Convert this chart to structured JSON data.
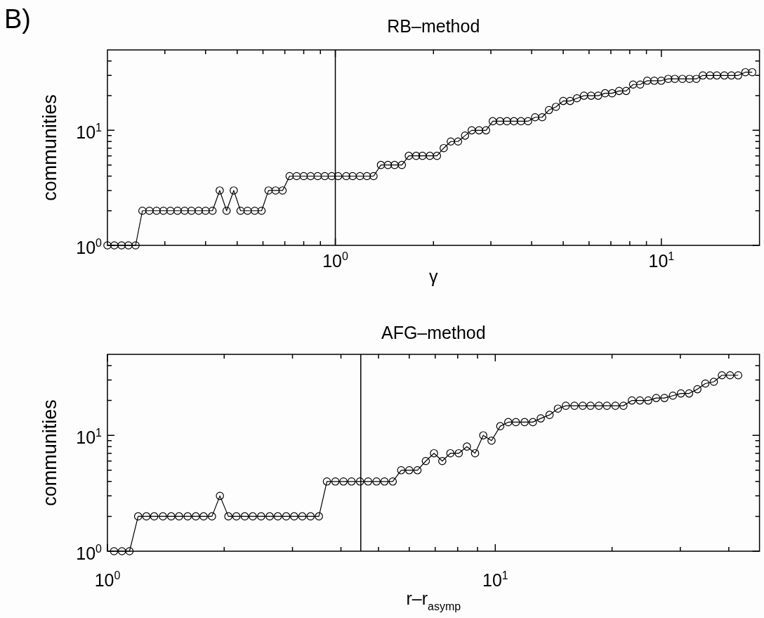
{
  "chart_data": [
    {
      "type": "line",
      "title": "RB–method",
      "xlabel": "γ",
      "ylabel": "communities",
      "annotations": [
        "B)"
      ],
      "log": "xy",
      "marker": "circle",
      "color": "#000000",
      "xlim": [
        0.2,
        20
      ],
      "ylim": [
        1,
        50
      ],
      "xticks": [
        {
          "value": 0.3,
          "label": null
        },
        {
          "value": 0.4,
          "label": null
        },
        {
          "value": 0.5,
          "label": null
        },
        {
          "value": 0.6,
          "label": null
        },
        {
          "value": 0.7,
          "label": null
        },
        {
          "value": 0.8,
          "label": null
        },
        {
          "value": 0.9,
          "label": null
        },
        {
          "value": 1,
          "label": "10$^{0}$"
        },
        {
          "value": 2,
          "label": null
        },
        {
          "value": 3,
          "label": null
        },
        {
          "value": 4,
          "label": null
        },
        {
          "value": 5,
          "label": null
        },
        {
          "value": 6,
          "label": null
        },
        {
          "value": 7,
          "label": null
        },
        {
          "value": 8,
          "label": null
        },
        {
          "value": 9,
          "label": null
        },
        {
          "value": 10,
          "label": "10$^{1}$"
        }
      ],
      "yticks": [
        {
          "value": 1,
          "label": "10$^{0}$"
        },
        {
          "value": 2,
          "label": null
        },
        {
          "value": 3,
          "label": null
        },
        {
          "value": 4,
          "label": null
        },
        {
          "value": 5,
          "label": null
        },
        {
          "value": 6,
          "label": null
        },
        {
          "value": 7,
          "label": null
        },
        {
          "value": 8,
          "label": null
        },
        {
          "value": 9,
          "label": null
        },
        {
          "value": 10,
          "label": "10$^{1}$"
        },
        {
          "value": 20,
          "label": null
        },
        {
          "value": 30,
          "label": null
        },
        {
          "value": 40,
          "label": null
        }
      ],
      "ref_lines": [
        {
          "axis": "x",
          "value": 1,
          "color": "#000000"
        }
      ],
      "x": [
        0.2,
        0.21,
        0.221,
        0.232,
        0.244,
        0.256,
        0.269,
        0.283,
        0.297,
        0.312,
        0.328,
        0.345,
        0.362,
        0.381,
        0.4,
        0.42,
        0.442,
        0.464,
        0.488,
        0.512,
        0.538,
        0.566,
        0.594,
        0.624,
        0.656,
        0.689,
        0.724,
        0.761,
        0.8,
        0.84,
        0.883,
        0.928,
        0.975,
        1.02,
        1.08,
        1.13,
        1.19,
        1.25,
        1.31,
        1.38,
        1.45,
        1.52,
        1.6,
        1.68,
        1.77,
        1.85,
        1.95,
        2.05,
        2.15,
        2.26,
        2.38,
        2.5,
        2.62,
        2.76,
        2.9,
        3.04,
        3.2,
        3.36,
        3.53,
        3.71,
        3.9,
        4.1,
        4.31,
        4.52,
        4.75,
        5,
        5.25,
        5.51,
        5.79,
        6.09,
        6.4,
        6.72,
        7.06,
        7.42,
        7.8,
        8.19,
        8.61,
        9.05,
        9.51,
        9.99,
        10.5,
        11,
        11.6,
        12.2,
        12.8,
        13.4,
        14.1,
        14.8,
        15.6,
        16.4,
        17.2,
        18.1,
        19
      ],
      "values": [
        1,
        1,
        1,
        1,
        1,
        2,
        2,
        2,
        2,
        2,
        2,
        2,
        2,
        2,
        2,
        2,
        3,
        2,
        3,
        2,
        2,
        2,
        2,
        3,
        3,
        3,
        4,
        4,
        4,
        4,
        4,
        4,
        4,
        4,
        4,
        4,
        4,
        4,
        4,
        5,
        5,
        5,
        5,
        6,
        6,
        6,
        6,
        6,
        7,
        8,
        8,
        9,
        10,
        10,
        10,
        12,
        12,
        12,
        12,
        12,
        12,
        13,
        13,
        15,
        16,
        18,
        18,
        19,
        20,
        20,
        20,
        21,
        21,
        22,
        22,
        25,
        25,
        27,
        27,
        27,
        28,
        28,
        28,
        28,
        28,
        30,
        30,
        30,
        30,
        30,
        30,
        32,
        32
      ]
    },
    {
      "type": "line",
      "title": "AFG–method",
      "xlabel": "r–r$_{asymp}$",
      "ylabel": "communities",
      "log": "xy",
      "marker": "circle",
      "color": "#000000",
      "xlim": [
        1,
        48
      ],
      "ylim": [
        1,
        50
      ],
      "xticks": [
        {
          "value": 1,
          "label": "10$^{0}$"
        },
        {
          "value": 2,
          "label": null
        },
        {
          "value": 3,
          "label": null
        },
        {
          "value": 4,
          "label": null
        },
        {
          "value": 5,
          "label": null
        },
        {
          "value": 6,
          "label": null
        },
        {
          "value": 7,
          "label": null
        },
        {
          "value": 8,
          "label": null
        },
        {
          "value": 9,
          "label": null
        },
        {
          "value": 10,
          "label": "10$^{1}$"
        },
        {
          "value": 20,
          "label": null
        },
        {
          "value": 30,
          "label": null
        },
        {
          "value": 40,
          "label": null
        }
      ],
      "yticks": [
        {
          "value": 1,
          "label": "10$^{0}$"
        },
        {
          "value": 2,
          "label": null
        },
        {
          "value": 3,
          "label": null
        },
        {
          "value": 4,
          "label": null
        },
        {
          "value": 5,
          "label": null
        },
        {
          "value": 6,
          "label": null
        },
        {
          "value": 7,
          "label": null
        },
        {
          "value": 8,
          "label": null
        },
        {
          "value": 9,
          "label": null
        },
        {
          "value": 10,
          "label": "10$^{1}$"
        },
        {
          "value": 20,
          "label": null
        },
        {
          "value": 30,
          "label": null
        },
        {
          "value": 40,
          "label": null
        }
      ],
      "ref_lines": [
        {
          "axis": "x",
          "value": 4.5,
          "color": "#000000"
        }
      ],
      "x": [
        1.04,
        1.09,
        1.14,
        1.2,
        1.26,
        1.32,
        1.39,
        1.46,
        1.53,
        1.61,
        1.69,
        1.77,
        1.86,
        1.95,
        2.05,
        2.15,
        2.26,
        2.37,
        2.49,
        2.62,
        2.75,
        2.89,
        3.03,
        3.18,
        3.34,
        3.51,
        3.68,
        3.87,
        4.06,
        4.26,
        4.48,
        4.7,
        4.94,
        5.18,
        5.44,
        5.72,
        6,
        6.3,
        6.62,
        6.95,
        7.3,
        7.66,
        8.05,
        8.45,
        8.87,
        9.31,
        9.78,
        10.3,
        10.8,
        11.3,
        11.9,
        12.5,
        13.1,
        13.8,
        14.5,
        15.2,
        16,
        16.8,
        17.6,
        18.5,
        19.4,
        20.4,
        21.4,
        22.5,
        23.6,
        24.8,
        26,
        27.3,
        28.7,
        30.1,
        31.6,
        33.2,
        34.8,
        36.6,
        38.4,
        40.3,
        42.3
      ],
      "values": [
        1,
        1,
        1,
        2,
        2,
        2,
        2,
        2,
        2,
        2,
        2,
        2,
        2,
        3,
        2,
        2,
        2,
        2,
        2,
        2,
        2,
        2,
        2,
        2,
        2,
        2,
        4,
        4,
        4,
        4,
        4,
        4,
        4,
        4,
        4,
        5,
        5,
        5,
        6,
        7,
        6,
        7,
        7,
        8,
        7,
        10,
        9,
        12,
        13,
        13,
        13,
        13,
        14,
        15,
        17,
        18,
        18,
        18,
        18,
        18,
        18,
        18,
        18,
        20,
        20,
        20,
        21,
        21,
        22,
        23,
        23,
        25,
        28,
        29,
        33,
        33,
        33
      ]
    }
  ]
}
